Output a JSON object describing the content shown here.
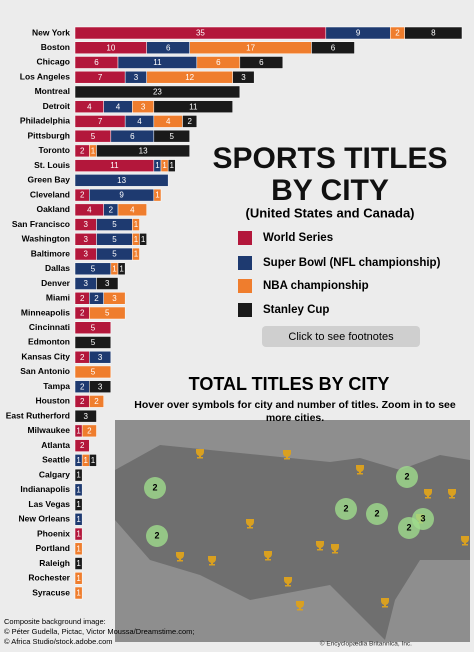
{
  "chart_data": {
    "type": "bar",
    "orientation": "horizontal",
    "stacked": true,
    "title": "SPORTS TITLES BY CITY",
    "subtitle": "(United States and Canada)",
    "categories": [
      "New York",
      "Boston",
      "Chicago",
      "Los Angeles",
      "Montreal",
      "Detroit",
      "Philadelphia",
      "Pittsburgh",
      "Toronto",
      "St. Louis",
      "Green Bay",
      "Cleveland",
      "Oakland",
      "San Francisco",
      "Washington",
      "Baltimore",
      "Dallas",
      "Denver",
      "Miami",
      "Minneapolis",
      "Cincinnati",
      "Edmonton",
      "Kansas City",
      "San Antonio",
      "Tampa",
      "Houston",
      "East Rutherford",
      "Milwaukee",
      "Atlanta",
      "Seattle",
      "Calgary",
      "Indianapolis",
      "Las Vegas",
      "New Orleans",
      "Phoenix",
      "Portland",
      "Raleigh",
      "Rochester",
      "Syracuse"
    ],
    "series": [
      {
        "name": "World Series",
        "color": "#b3173b",
        "values": [
          35,
          10,
          6,
          7,
          0,
          4,
          7,
          5,
          2,
          11,
          0,
          2,
          4,
          3,
          3,
          3,
          0,
          0,
          2,
          2,
          5,
          0,
          2,
          0,
          0,
          2,
          0,
          1,
          2,
          0,
          0,
          0,
          0,
          0,
          1,
          0,
          0,
          0,
          0
        ]
      },
      {
        "name": "Super Bowl (NFL championship)",
        "color": "#1e3a70",
        "values": [
          9,
          6,
          11,
          3,
          0,
          4,
          4,
          6,
          0,
          1,
          13,
          9,
          2,
          5,
          5,
          5,
          5,
          3,
          2,
          0,
          0,
          0,
          3,
          0,
          2,
          0,
          0,
          0,
          0,
          1,
          0,
          1,
          0,
          1,
          0,
          0,
          0,
          0,
          0
        ]
      },
      {
        "name": "NBA championship",
        "color": "#ef7d2d",
        "values": [
          2,
          17,
          6,
          12,
          0,
          3,
          4,
          0,
          1,
          1,
          0,
          1,
          4,
          1,
          1,
          1,
          1,
          0,
          3,
          5,
          0,
          0,
          0,
          5,
          0,
          2,
          0,
          2,
          0,
          1,
          0,
          0,
          0,
          0,
          0,
          1,
          0,
          1,
          1
        ]
      },
      {
        "name": "Stanley Cup",
        "color": "#1a1a1a",
        "values": [
          8,
          6,
          6,
          3,
          23,
          11,
          2,
          5,
          13,
          1,
          0,
          0,
          0,
          0,
          1,
          0,
          1,
          3,
          0,
          0,
          0,
          5,
          0,
          0,
          3,
          0,
          3,
          0,
          0,
          1,
          1,
          0,
          1,
          0,
          0,
          0,
          1,
          0,
          0
        ]
      }
    ]
  },
  "footnotes_button": "Click to see footnotes",
  "map": {
    "title": "TOTAL TITLES BY CITY",
    "instructions": "Hover over symbols for city and number of titles. Zoom in to see more cities.",
    "clusters": [
      {
        "label": "2"
      },
      {
        "label": "2"
      },
      {
        "label": "2"
      },
      {
        "label": "2"
      },
      {
        "label": "2"
      },
      {
        "label": "3"
      },
      {
        "label": "2"
      }
    ]
  },
  "footer": {
    "lines": [
      "Composite background image:",
      "© Péter Gudella, Pictac, Victor Moussa/Dreamstime.com;",
      "© Africa Studio/stock.adobe.com"
    ],
    "credit": "© Encyclopædia Britannica, Inc."
  }
}
